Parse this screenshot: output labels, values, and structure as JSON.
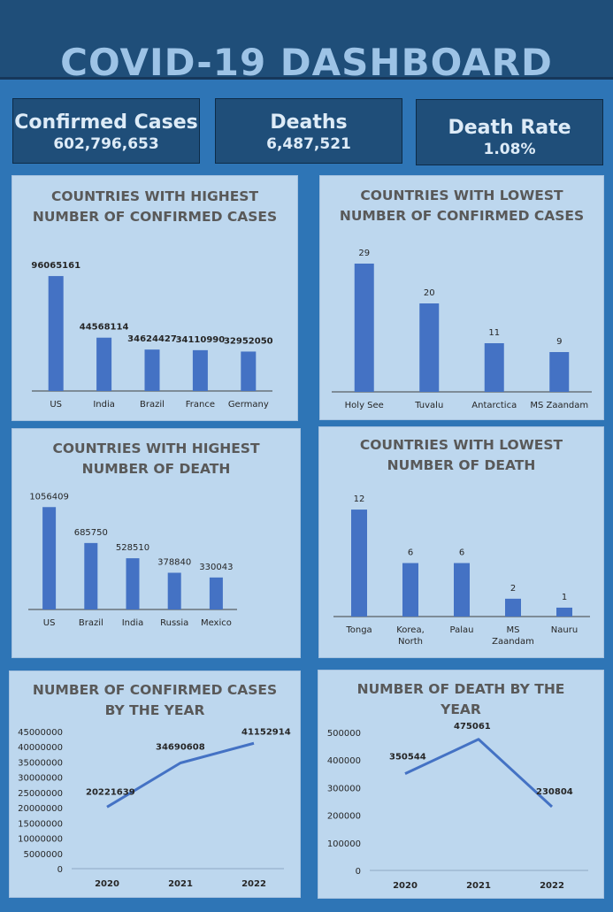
{
  "title": "COVID-19 DASHBOARD",
  "kpis": [
    {
      "label": "Confirmed Cases",
      "value": "602,796,653"
    },
    {
      "label": "Deaths",
      "value": "6,487,521"
    },
    {
      "label": "Death Rate",
      "value": "1.08%"
    }
  ],
  "colors": {
    "bar": "#4472c4",
    "background": "#2e75b6",
    "header": "#1f4e79",
    "panel": "#bdd7ee"
  },
  "chart_data": [
    {
      "type": "bar",
      "title": "COUNTRIES WITH HIGHEST NUMBER OF CONFIRMED CASES",
      "title_lines": [
        "COUNTRIES WITH HIGHEST",
        "NUMBER OF CONFIRMED CASES"
      ],
      "categories": [
        "US",
        "India",
        "Brazil",
        "France",
        "Germany"
      ],
      "values": [
        96065161,
        44568114,
        34624427,
        34110990,
        32952050
      ],
      "labels": [
        "96065161",
        "44568114",
        "34624427",
        "34110990",
        "32952050"
      ],
      "ylim": [
        0,
        105000000
      ]
    },
    {
      "type": "bar",
      "title": "COUNTRIES WITH LOWEST NUMBER OF CONFIRMED CASES",
      "title_lines": [
        "COUNTRIES WITH LOWEST",
        "NUMBER OF CONFIRMED CASES"
      ],
      "categories": [
        "Holy See",
        "Tuvalu",
        "Antarctica",
        "MS Zaandam"
      ],
      "values": [
        29,
        20,
        11,
        9
      ],
      "labels": [
        "29",
        "20",
        "11",
        "9"
      ],
      "ylim": [
        0,
        32
      ]
    },
    {
      "type": "bar",
      "title": "COUNTRIES WITH HIGHEST NUMBER OF DEATH",
      "title_lines": [
        "COUNTRIES WITH HIGHEST",
        "NUMBER OF DEATH"
      ],
      "categories": [
        "US",
        "Brazil",
        "India",
        "Russia",
        "Mexico"
      ],
      "values": [
        1056409,
        685750,
        528510,
        378840,
        330043
      ],
      "labels": [
        "1056409",
        "685750",
        "528510",
        "378840",
        "330043"
      ],
      "ylim": [
        0,
        1150000
      ]
    },
    {
      "type": "bar",
      "title": "COUNTRIES WITH LOWEST NUMBER OF DEATH",
      "title_lines": [
        "COUNTRIES WITH LOWEST",
        "NUMBER OF DEATH"
      ],
      "categories": [
        [
          "Tonga"
        ],
        [
          "Korea,",
          "North"
        ],
        [
          "Palau"
        ],
        [
          "MS",
          "Zaandam"
        ],
        [
          "Nauru"
        ]
      ],
      "values": [
        12,
        6,
        6,
        2,
        1
      ],
      "labels": [
        "12",
        "6",
        "6",
        "2",
        "1"
      ],
      "ylim": [
        0,
        13
      ]
    },
    {
      "type": "line",
      "title": "NUMBER OF CONFIRMED CASES BY THE YEAR",
      "title_lines": [
        "NUMBER OF CONFIRMED CASES",
        "BY THE YEAR"
      ],
      "x": [
        "2020",
        "2021",
        "2022"
      ],
      "values": [
        20221639,
        34690608,
        41152914
      ],
      "labels": [
        "20221639",
        "34690608",
        "41152914"
      ],
      "ylim": [
        0,
        45000000
      ],
      "yticks": [
        "0",
        "5000000",
        "10000000",
        "15000000",
        "20000000",
        "25000000",
        "30000000",
        "35000000",
        "40000000",
        "45000000"
      ]
    },
    {
      "type": "line",
      "title": "NUMBER OF DEATH BY THE YEAR",
      "title_lines": [
        "NUMBER OF DEATH BY THE",
        "YEAR"
      ],
      "x": [
        "2020",
        "2021",
        "2022"
      ],
      "values": [
        350544,
        475061,
        230804
      ],
      "labels": [
        "350544",
        "475061",
        "230804"
      ],
      "ylim": [
        0,
        500000
      ],
      "yticks": [
        "0",
        "100000",
        "200000",
        "300000",
        "400000",
        "500000"
      ]
    }
  ]
}
